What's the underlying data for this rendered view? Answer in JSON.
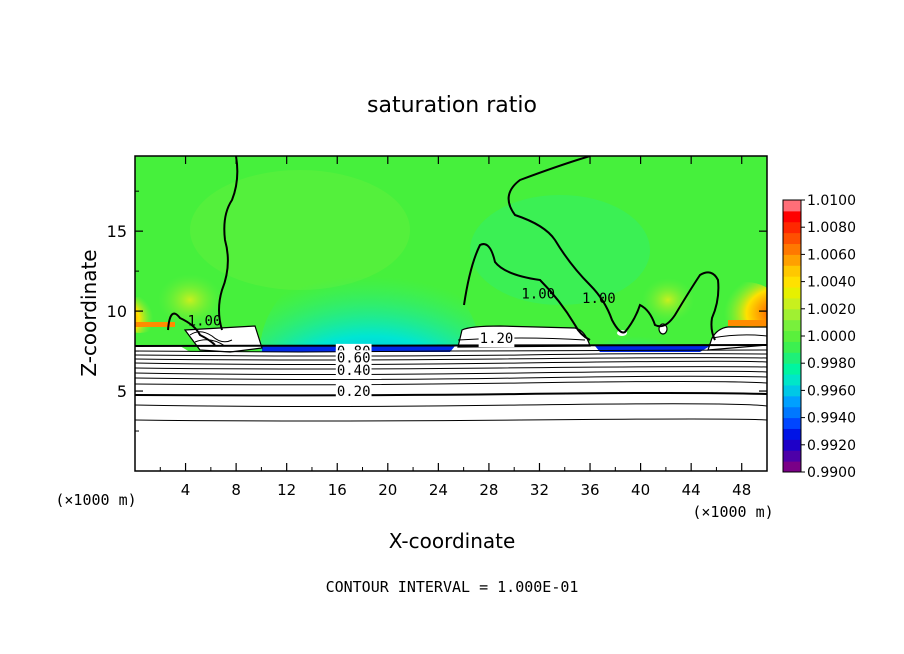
{
  "chart_data": {
    "type": "heatmap",
    "title": "saturation ratio",
    "xlabel": "X-coordinate",
    "ylabel": "Z-coordinate",
    "x_unit_left": "(×1000 m)",
    "x_unit_right": "(×1000 m)",
    "footer": "CONTOUR INTERVAL = 1.000E-01",
    "xlim": [
      0,
      50
    ],
    "ylim": [
      0,
      19.7
    ],
    "x_ticks": [
      4,
      8,
      12,
      16,
      20,
      24,
      28,
      32,
      36,
      40,
      44,
      48
    ],
    "y_ticks": [
      5,
      10,
      15
    ],
    "colorbar": {
      "min": 0.99,
      "max": 1.01,
      "step": 0.001,
      "labels": [
        "1.0100",
        "1.0080",
        "1.0060",
        "1.0040",
        "1.0020",
        "1.0000",
        "0.9980",
        "0.9960",
        "0.9940",
        "0.9920",
        "0.9900"
      ],
      "colors": [
        "#7a0087",
        "#4d00a8",
        "#1e00c8",
        "#0014e6",
        "#0046ff",
        "#0078ff",
        "#00a0ff",
        "#00c8e6",
        "#00e6c8",
        "#00f5a0",
        "#1ef078",
        "#3cf050",
        "#5af03c",
        "#78f03c",
        "#a0f032",
        "#c8f01e",
        "#e6f000",
        "#ffe100",
        "#ffc800",
        "#ffa000",
        "#ff7800",
        "#ff5000",
        "#ff2800",
        "#ff0000",
        "#ff6e78"
      ]
    },
    "contour_labels": [
      {
        "x": 5.5,
        "z": 9.1,
        "text": "1.00"
      },
      {
        "x": 31.9,
        "z": 10.8,
        "text": "1.00"
      },
      {
        "x": 36.7,
        "z": 10.5,
        "text": "1.00"
      },
      {
        "x": 28.6,
        "z": 8.0,
        "text": "1.20"
      },
      {
        "x": 17.3,
        "z": 7.2,
        "text": "0.80"
      },
      {
        "x": 17.3,
        "z": 6.8,
        "text": "0.60"
      },
      {
        "x": 17.3,
        "z": 6.0,
        "text": "0.40"
      },
      {
        "x": 17.3,
        "z": 4.7,
        "text": "0.20"
      }
    ]
  }
}
